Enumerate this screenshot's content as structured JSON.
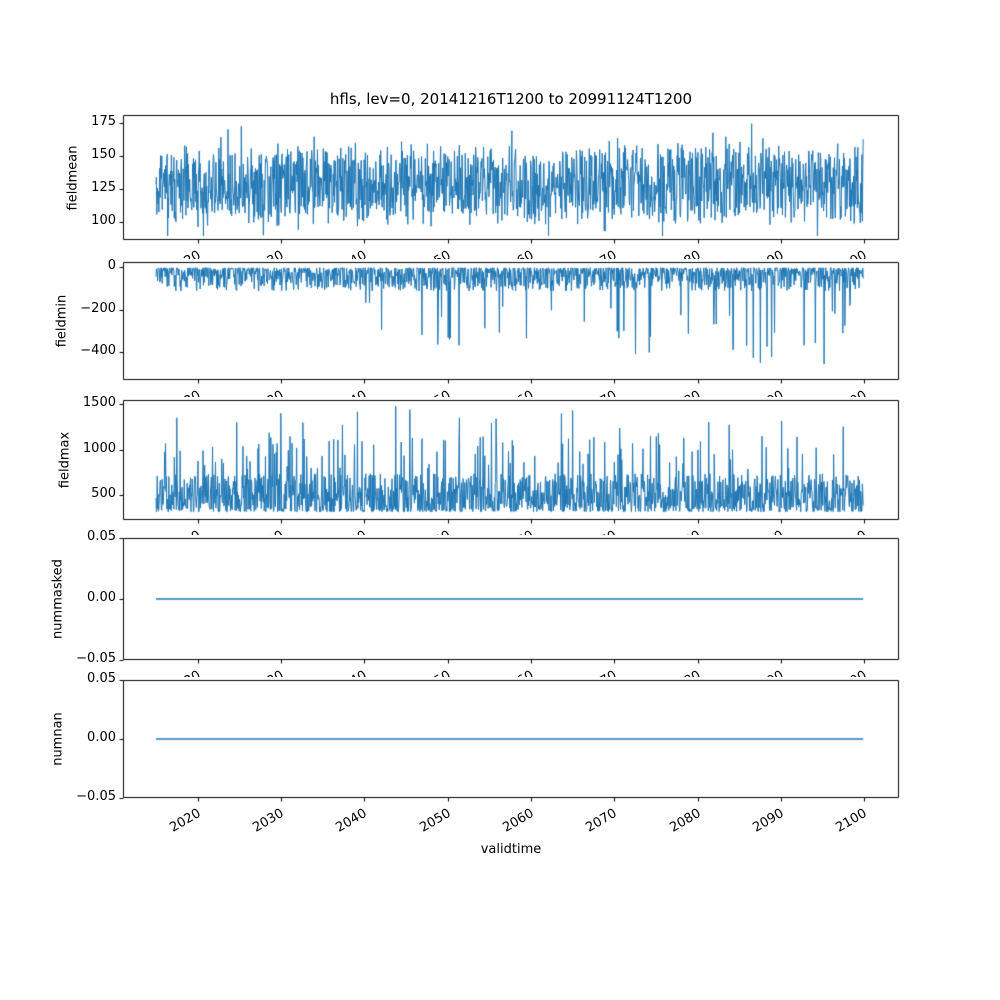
{
  "figure": {
    "title": "hfls, lev=0, 20141216T1200 to 20991124T1200",
    "xlabel": "validtime",
    "line_color": "#1f77b4",
    "background": "#ffffff",
    "text_color": "#000000"
  },
  "x_axis": {
    "xlim": [
      2011.0,
      2104.2
    ],
    "data_range": [
      2014.96,
      2099.9
    ],
    "xticks": [
      2020,
      2030,
      2040,
      2050,
      2060,
      2070,
      2080,
      2090,
      2100
    ],
    "xtick_labels": [
      "2020",
      "2030",
      "2040",
      "2050",
      "2060",
      "2070",
      "2080",
      "2090",
      "2100"
    ]
  },
  "chart_data": [
    {
      "type": "line",
      "ylabel": "fieldmean",
      "ylim": [
        86,
        181
      ],
      "yticks": [
        100,
        125,
        150,
        175
      ],
      "ytick_labels": [
        "100",
        "125",
        "150",
        "175"
      ],
      "points": 1700,
      "signal": {
        "kind": "noise",
        "seed": 11,
        "base": 128,
        "amp": 34,
        "spike_prob": 0.012,
        "spike_extra": 14,
        "clamp": [
          89,
          176
        ]
      }
    },
    {
      "type": "line",
      "ylabel": "fieldmin",
      "ylim": [
        -532,
        24
      ],
      "yticks": [
        0,
        -200,
        -400
      ],
      "ytick_labels": [
        "0",
        "−200",
        "−400"
      ],
      "points": 1700,
      "signal": {
        "kind": "spiky_neg",
        "seed": 22,
        "base": -3,
        "amp": 110,
        "spike_prob_start": 0.004,
        "spike_prob_end": 0.05,
        "spike_base": -160,
        "spike_extreme": -505
      }
    },
    {
      "type": "line",
      "ylabel": "fieldmax",
      "ylim": [
        225,
        1545
      ],
      "yticks": [
        500,
        1000,
        1500
      ],
      "ytick_labels": [
        "500",
        "1000",
        "1500"
      ],
      "points": 1700,
      "signal": {
        "kind": "spiky_pos",
        "seed": 33,
        "base": 315,
        "amp": 420,
        "spike_prob": 0.06,
        "spike_lo": 750,
        "spike_hi": 1150,
        "big_prob": 0.009,
        "big_lo": 1180,
        "big_hi": 1480
      }
    },
    {
      "type": "line",
      "ylabel": "nummasked",
      "ylim": [
        -0.05,
        0.05
      ],
      "yticks": [
        -0.05,
        0.0,
        0.05
      ],
      "ytick_labels": [
        "−0.05",
        "0.00",
        "0.05"
      ],
      "points": 2,
      "signal": {
        "kind": "constant",
        "seed": 44,
        "value": 0
      }
    },
    {
      "type": "line",
      "ylabel": "numnan",
      "ylim": [
        -0.05,
        0.05
      ],
      "yticks": [
        -0.05,
        0.0,
        0.05
      ],
      "ytick_labels": [
        "−0.05",
        "0.00",
        "0.05"
      ],
      "points": 2,
      "signal": {
        "kind": "constant",
        "seed": 55,
        "value": 0
      }
    }
  ]
}
